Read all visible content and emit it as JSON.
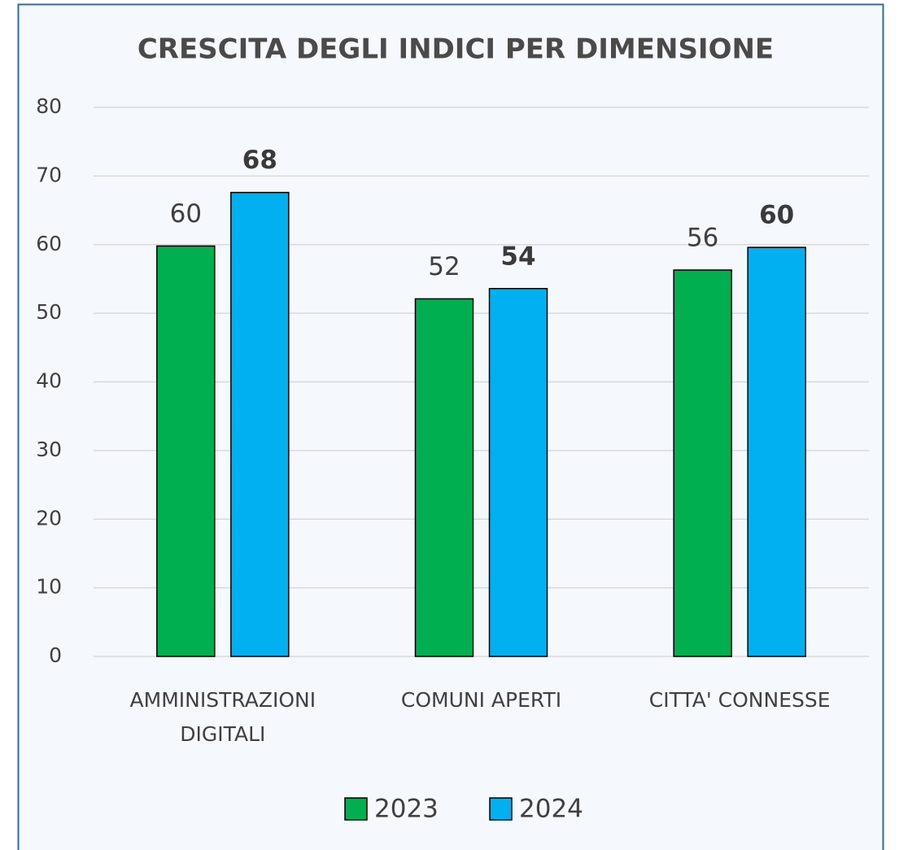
{
  "chart_data": {
    "type": "bar",
    "title": "CRESCITA DEGLI INDICI PER DIMENSIONE",
    "categories": [
      "AMMINISTRAZIONI DIGITALI",
      "COMUNI APERTI",
      "CITTA' CONNESSE"
    ],
    "series": [
      {
        "name": "2023",
        "color": "#00b050",
        "values": [
          59.8,
          52.1,
          56.3
        ],
        "value_labels": [
          "60",
          "52",
          "56"
        ]
      },
      {
        "name": "2024",
        "color": "#00b0f0",
        "values": [
          67.6,
          53.6,
          59.6
        ],
        "value_labels": [
          "68",
          "54",
          "60"
        ]
      }
    ],
    "ylim": [
      0,
      80
    ],
    "yticks": [
      0,
      10,
      20,
      30,
      40,
      50,
      60,
      70,
      80
    ],
    "grid": true,
    "legend": "bottom"
  }
}
